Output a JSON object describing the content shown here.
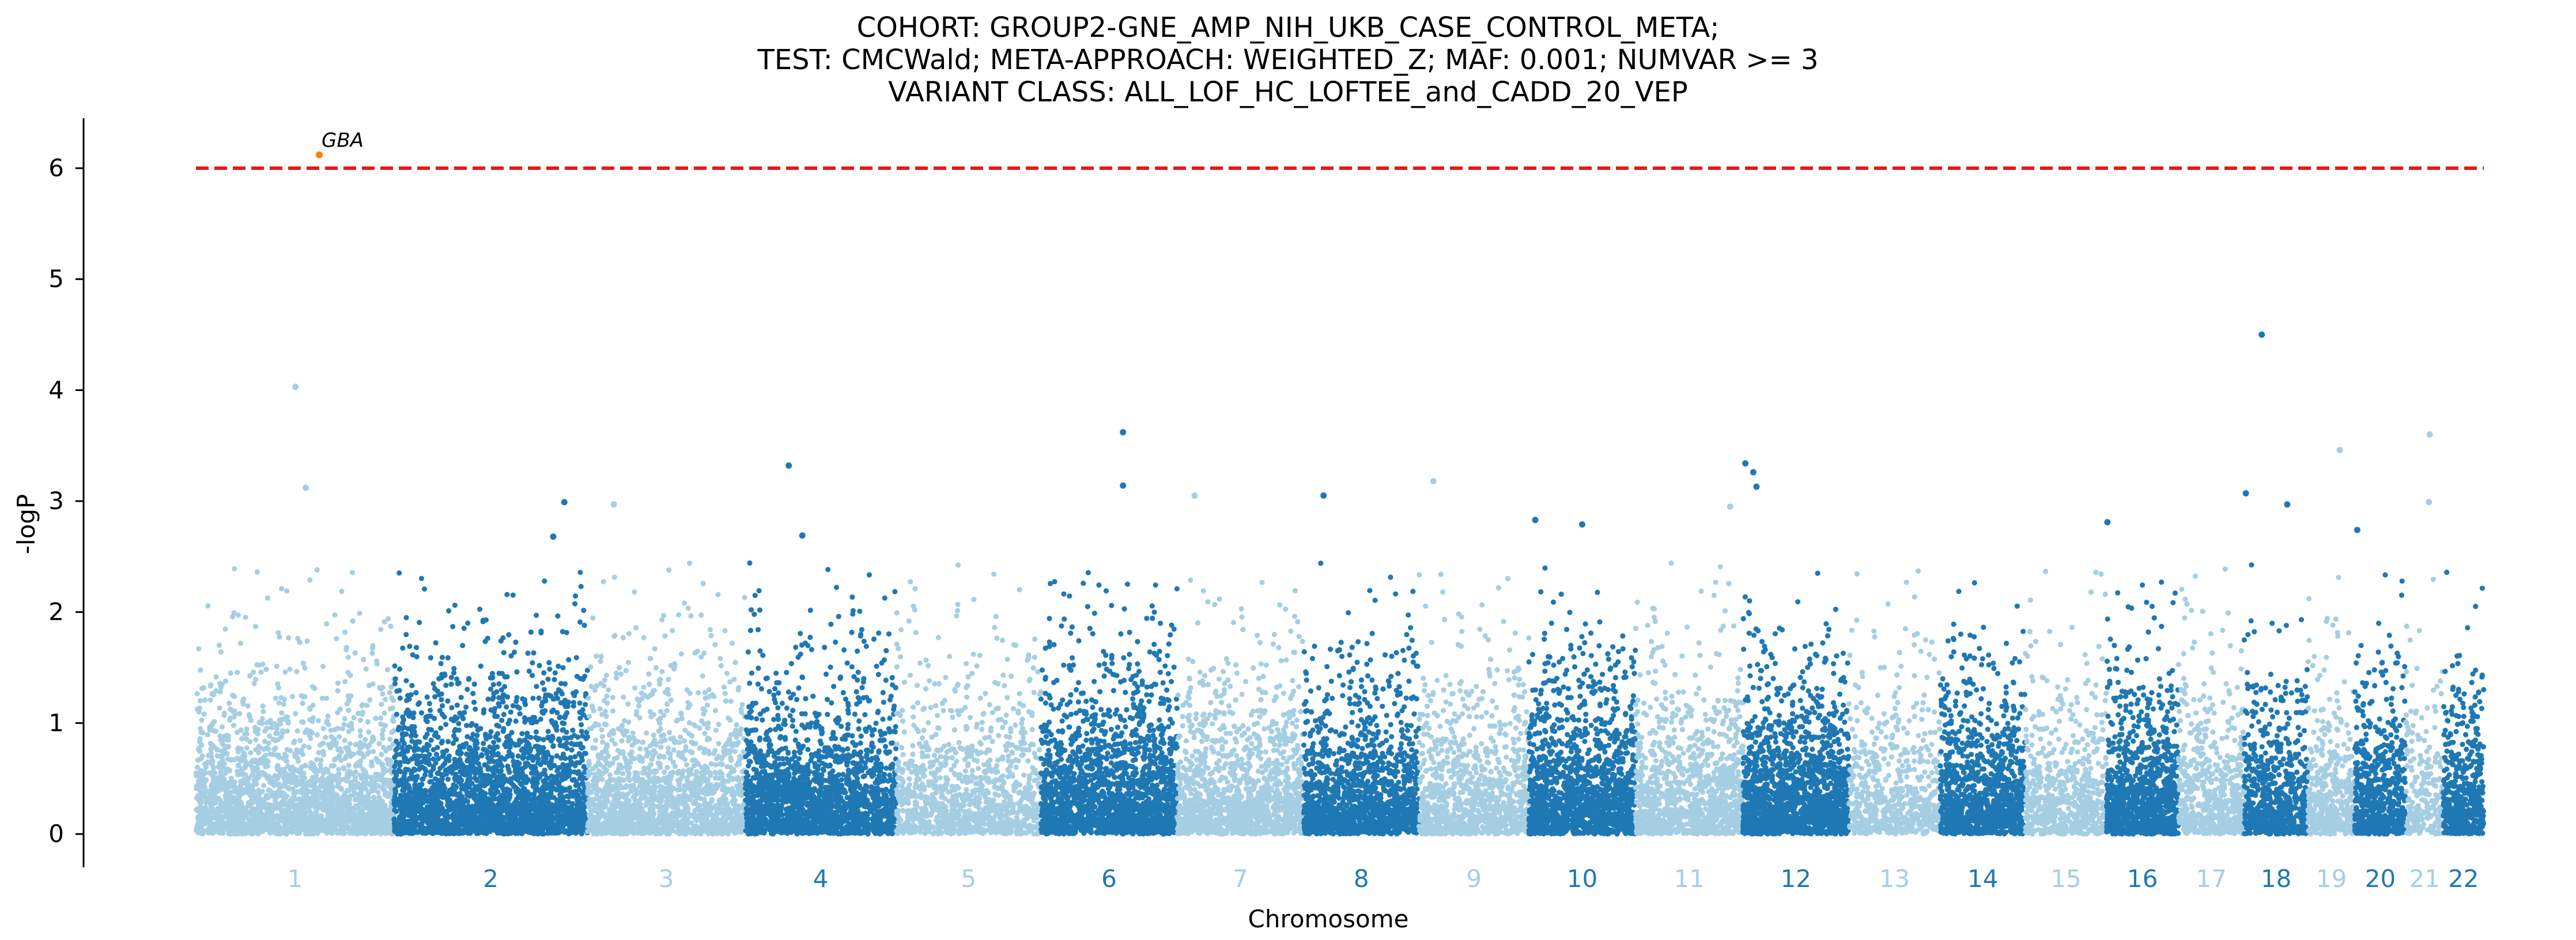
{
  "chart_data": {
    "type": "scatter",
    "title_lines": [
      "COHORT: GROUP2-GNE_AMP_NIH_UKB_CASE_CONTROL_META;",
      "TEST: CMCWald; META-APPROACH: WEIGHTED_Z; MAF: 0.001; NUMVAR >= 3",
      "VARIANT CLASS: ALL_LOF_HC_LOFTEE_and_CADD_20_VEP"
    ],
    "xlabel": "Chromosome",
    "ylabel": "-logP",
    "ylim": [
      -0.3,
      6.45
    ],
    "yticks": [
      0,
      1,
      2,
      3,
      4,
      5,
      6
    ],
    "threshold": 6.0,
    "threshold_color": "#e31a1c",
    "colors": {
      "light": "#a6cee3",
      "dark": "#1f78b4",
      "highlight": "#ff7f0e"
    },
    "chromosomes": [
      {
        "label": "1",
        "start": 0,
        "end": 249,
        "density": 1.0
      },
      {
        "label": "2",
        "start": 249,
        "end": 492,
        "density": 1.2
      },
      {
        "label": "3",
        "start": 492,
        "end": 690,
        "density": 0.9
      },
      {
        "label": "4",
        "start": 690,
        "end": 880,
        "density": 1.1
      },
      {
        "label": "5",
        "start": 880,
        "end": 1062,
        "density": 0.7
      },
      {
        "label": "6",
        "start": 1062,
        "end": 1233,
        "density": 1.3
      },
      {
        "label": "7",
        "start": 1233,
        "end": 1392,
        "density": 0.9
      },
      {
        "label": "8",
        "start": 1392,
        "end": 1537,
        "density": 1.1
      },
      {
        "label": "9",
        "start": 1537,
        "end": 1675,
        "density": 0.8
      },
      {
        "label": "10",
        "start": 1675,
        "end": 1809,
        "density": 1.3
      },
      {
        "label": "11",
        "start": 1809,
        "end": 1944,
        "density": 0.9
      },
      {
        "label": "12",
        "start": 1944,
        "end": 2077,
        "density": 1.4
      },
      {
        "label": "13",
        "start": 2077,
        "end": 2192,
        "density": 0.6
      },
      {
        "label": "14",
        "start": 2192,
        "end": 2299,
        "density": 1.1
      },
      {
        "label": "15",
        "start": 2299,
        "end": 2401,
        "density": 0.7
      },
      {
        "label": "16",
        "start": 2401,
        "end": 2491,
        "density": 1.3
      },
      {
        "label": "17",
        "start": 2491,
        "end": 2574,
        "density": 0.8
      },
      {
        "label": "18",
        "start": 2574,
        "end": 2654,
        "density": 0.9
      },
      {
        "label": "19",
        "start": 2654,
        "end": 2713,
        "density": 0.8
      },
      {
        "label": "20",
        "start": 2713,
        "end": 2777,
        "density": 1.1
      },
      {
        "label": "21",
        "start": 2777,
        "end": 2824,
        "density": 0.5
      },
      {
        "label": "22",
        "start": 2824,
        "end": 2875,
        "density": 1.1
      }
    ],
    "highlighted": [
      {
        "label": "GBA",
        "chrom": "1",
        "pos": 155,
        "y": 6.12
      }
    ],
    "notable_points": [
      {
        "chrom": "1",
        "pos": 125,
        "y": 4.03
      },
      {
        "chrom": "1",
        "pos": 138,
        "y": 3.12
      },
      {
        "chrom": "2",
        "pos": 200,
        "y": 2.68
      },
      {
        "chrom": "2",
        "pos": 214,
        "y": 2.99
      },
      {
        "chrom": "3",
        "pos": 33,
        "y": 2.97
      },
      {
        "chrom": "4",
        "pos": 55,
        "y": 3.32
      },
      {
        "chrom": "4",
        "pos": 72,
        "y": 2.69
      },
      {
        "chrom": "6",
        "pos": 103,
        "y": 3.62
      },
      {
        "chrom": "6",
        "pos": 103,
        "y": 3.14
      },
      {
        "chrom": "7",
        "pos": 22,
        "y": 3.05
      },
      {
        "chrom": "8",
        "pos": 25,
        "y": 3.05
      },
      {
        "chrom": "9",
        "pos": 18,
        "y": 3.18
      },
      {
        "chrom": "10",
        "pos": 8,
        "y": 2.83
      },
      {
        "chrom": "10",
        "pos": 67,
        "y": 2.79
      },
      {
        "chrom": "11",
        "pos": 119,
        "y": 2.95
      },
      {
        "chrom": "12",
        "pos": 3,
        "y": 3.34
      },
      {
        "chrom": "12",
        "pos": 13,
        "y": 3.26
      },
      {
        "chrom": "12",
        "pos": 17,
        "y": 3.13
      },
      {
        "chrom": "16",
        "pos": 1,
        "y": 2.81
      },
      {
        "chrom": "18",
        "pos": 22,
        "y": 4.5
      },
      {
        "chrom": "18",
        "pos": 2,
        "y": 3.07
      },
      {
        "chrom": "18",
        "pos": 54,
        "y": 2.97
      },
      {
        "chrom": "19",
        "pos": 40,
        "y": 3.46
      },
      {
        "chrom": "20",
        "pos": 3,
        "y": 2.74
      },
      {
        "chrom": "21",
        "pos": 30,
        "y": 3.6
      },
      {
        "chrom": "21",
        "pos": 29,
        "y": 2.99
      }
    ]
  }
}
